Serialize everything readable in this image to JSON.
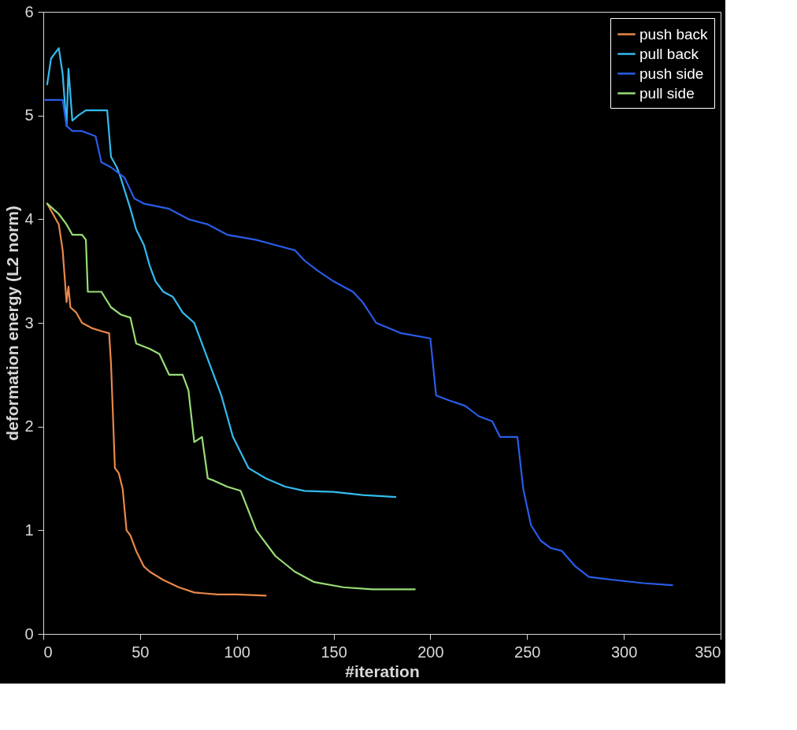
{
  "chart_data": {
    "type": "line",
    "xlabel": "#iteration",
    "ylabel": "deformation energy (L2 norm)",
    "xlim": [
      0,
      350
    ],
    "ylim": [
      0,
      6
    ],
    "xticks": [
      0,
      50,
      100,
      150,
      200,
      250,
      300,
      350
    ],
    "yticks": [
      0,
      1,
      2,
      3,
      4,
      5,
      6
    ],
    "grid": false,
    "legend": "top right",
    "series": [
      {
        "name": "push back",
        "color": "#e8884a",
        "x": [
          2,
          5,
          8,
          10,
          12,
          13,
          14,
          17,
          20,
          25,
          30,
          34,
          35,
          37,
          39,
          41,
          43,
          45,
          48,
          52,
          55,
          62,
          70,
          78,
          90,
          100,
          115
        ],
        "values": [
          4.15,
          4.05,
          3.95,
          3.7,
          3.2,
          3.35,
          3.15,
          3.1,
          3.0,
          2.95,
          2.92,
          2.9,
          2.6,
          1.6,
          1.55,
          1.4,
          1.0,
          0.95,
          0.8,
          0.65,
          0.6,
          0.52,
          0.45,
          0.4,
          0.38,
          0.38,
          0.37
        ]
      },
      {
        "name": "pull back",
        "color": "#33bbee",
        "x": [
          2,
          4,
          8,
          10,
          12,
          13,
          15,
          18,
          22,
          33,
          35,
          38,
          40,
          45,
          48,
          52,
          55,
          58,
          62,
          67,
          72,
          78,
          82,
          88,
          92,
          95,
          98,
          102,
          106,
          115,
          125,
          135,
          150,
          165,
          182
        ],
        "values": [
          5.3,
          5.55,
          5.65,
          5.4,
          4.9,
          5.45,
          4.95,
          5.0,
          5.05,
          5.05,
          4.6,
          4.5,
          4.4,
          4.1,
          3.9,
          3.75,
          3.55,
          3.4,
          3.3,
          3.25,
          3.1,
          3.0,
          2.8,
          2.5,
          2.3,
          2.1,
          1.9,
          1.75,
          1.6,
          1.5,
          1.42,
          1.38,
          1.37,
          1.34,
          1.32
        ]
      },
      {
        "name": "push side",
        "color": "#2a5ce8",
        "x": [
          1,
          10,
          12,
          15,
          20,
          27,
          30,
          35,
          42,
          47,
          52,
          65,
          75,
          85,
          95,
          110,
          120,
          130,
          135,
          142,
          150,
          160,
          165,
          172,
          185,
          200,
          203,
          210,
          218,
          225,
          232,
          236,
          245,
          248,
          252,
          257,
          262,
          268,
          275,
          282,
          295,
          310,
          325
        ],
        "values": [
          5.15,
          5.15,
          4.9,
          4.85,
          4.85,
          4.8,
          4.55,
          4.5,
          4.4,
          4.2,
          4.15,
          4.1,
          4.0,
          3.95,
          3.85,
          3.8,
          3.75,
          3.7,
          3.6,
          3.5,
          3.4,
          3.3,
          3.2,
          3.0,
          2.9,
          2.85,
          2.3,
          2.25,
          2.2,
          2.1,
          2.05,
          1.9,
          1.9,
          1.4,
          1.05,
          0.9,
          0.83,
          0.8,
          0.65,
          0.55,
          0.52,
          0.49,
          0.47
        ]
      },
      {
        "name": "pull side",
        "color": "#99dd77",
        "x": [
          2,
          5,
          8,
          12,
          15,
          20,
          22,
          23,
          30,
          35,
          40,
          45,
          48,
          55,
          60,
          65,
          72,
          75,
          78,
          82,
          85,
          88,
          95,
          102,
          110,
          120,
          130,
          140,
          155,
          170,
          192
        ],
        "values": [
          4.15,
          4.1,
          4.05,
          3.95,
          3.85,
          3.85,
          3.8,
          3.3,
          3.3,
          3.15,
          3.08,
          3.05,
          2.8,
          2.75,
          2.7,
          2.5,
          2.5,
          2.35,
          1.85,
          1.9,
          1.5,
          1.48,
          1.42,
          1.38,
          1.0,
          0.75,
          0.6,
          0.5,
          0.45,
          0.43,
          0.43
        ]
      }
    ]
  }
}
